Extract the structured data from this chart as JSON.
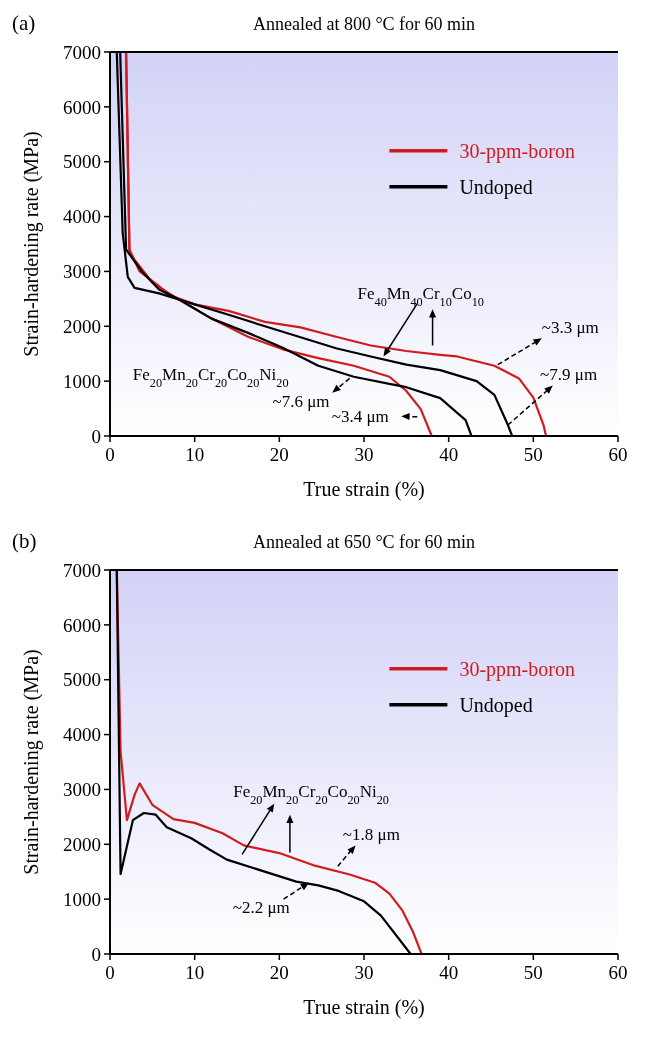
{
  "chart_data": [
    {
      "type": "line",
      "title": "Annealed at 800 °C for 60 min",
      "xlabel": "True strain (%)",
      "ylabel": "Strain-hardening rate (MPa)",
      "xlim": [
        0,
        60
      ],
      "xticks": [
        0,
        10,
        20,
        30,
        40,
        50,
        60
      ],
      "ylim": [
        0,
        7000
      ],
      "yticks": [
        0,
        1000,
        2000,
        3000,
        4000,
        5000,
        6000,
        7000
      ],
      "legend": "right",
      "grid": false,
      "series": [
        {
          "name": "30-ppm-boron",
          "color": "#d01c1f",
          "x": [
            1.9,
            2.3,
            3.5,
            5.8,
            7,
            10,
            14,
            18.3,
            22.5,
            26.7,
            30.8,
            35,
            39,
            41,
            45.4,
            48.3,
            50,
            51.2,
            51.5
          ],
          "values": [
            7000,
            3400,
            3000,
            2730,
            2570,
            2400,
            2280,
            2080,
            1980,
            1810,
            1650,
            1550,
            1480,
            1450,
            1280,
            1050,
            700,
            200,
            0
          ]
        },
        {
          "name": "Undoped",
          "color": "#000000",
          "x": [
            0.8,
            1.5,
            2.1,
            2.9,
            5.8,
            10,
            14.2,
            18.3,
            22.5,
            26.7,
            30.8,
            35,
            39,
            43.3,
            45.4,
            47,
            47.5
          ],
          "values": [
            7000,
            3700,
            2900,
            2700,
            2600,
            2400,
            2200,
            2000,
            1800,
            1600,
            1450,
            1300,
            1200,
            1000,
            750,
            200,
            0
          ]
        },
        {
          "color": "#d01c1f",
          "x": [
            1.9,
            2.3,
            5,
            7.9,
            12,
            16.3,
            20.4,
            24.6,
            28.8,
            33,
            35,
            36.7,
            38
          ],
          "values": [
            7000,
            3330,
            2800,
            2510,
            2140,
            1810,
            1580,
            1420,
            1280,
            1080,
            820,
            490,
            0
          ]
        },
        {
          "color": "#000000",
          "x": [
            1.2,
            1.9,
            3.75,
            5.8,
            7.9,
            12,
            16.3,
            20.4,
            24.6,
            28.8,
            33,
            35,
            39,
            42,
            42.7
          ],
          "values": [
            7000,
            3400,
            3000,
            2670,
            2510,
            2140,
            1880,
            1610,
            1280,
            1080,
            950,
            890,
            690,
            290,
            0
          ]
        }
      ],
      "annotations": [
        "(a)",
        {
          "text": "Fe$_{40}$Mn$_{40}$Cr$_{10}$Co$_{10}$",
          "x": 32.3,
          "y": 1450
        },
        "Fe$_{20}$Mn$_{20}$Cr$_{20}$Co$_{20}$Ni$_{20}$",
        {
          "text": "~3.3 μm",
          "x": 45.8,
          "y": 1300
        },
        {
          "text": "~7.9 μm",
          "x": 47,
          "y": 200
        },
        {
          "text": "~7.6 μm",
          "x": 28.3,
          "y": 1050
        },
        {
          "text": "~3.4 μm",
          "x": 36.3,
          "y": 350
        }
      ]
    },
    {
      "type": "line",
      "title": "Annealed at 650 °C for 60 min",
      "xlabel": "True strain (%)",
      "ylabel": "Strain-hardening rate (MPa)",
      "xlim": [
        0,
        60
      ],
      "xticks": [
        0,
        10,
        20,
        30,
        40,
        50,
        60
      ],
      "ylim": [
        0,
        7000
      ],
      "yticks": [
        0,
        1000,
        2000,
        3000,
        4000,
        5000,
        6000,
        7000
      ],
      "legend": "right",
      "grid": false,
      "series": [
        {
          "name": "30-ppm-boron",
          "color": "#d01c1f",
          "x": [
            0.8,
            1.25,
            2,
            2.9,
            3.5,
            5,
            7.5,
            10,
            13.3,
            15.8,
            20,
            24.2,
            28.3,
            31.3,
            33,
            34.5,
            35.8,
            36.8
          ],
          "values": [
            7000,
            3690,
            2440,
            2900,
            3110,
            2720,
            2460,
            2390,
            2200,
            1980,
            1840,
            1610,
            1450,
            1300,
            1100,
            800,
            400,
            0
          ]
        },
        {
          "name": "Undoped",
          "color": "#000000",
          "x": [
            0.8,
            1.25,
            2.7,
            4,
            5.4,
            6.7,
            9.6,
            11.7,
            13.8,
            17.9,
            22,
            24.6,
            27,
            30,
            32,
            34,
            35.5
          ],
          "values": [
            7000,
            1460,
            2440,
            2570,
            2540,
            2310,
            2110,
            1910,
            1720,
            1520,
            1320,
            1250,
            1150,
            960,
            700,
            300,
            0
          ]
        }
      ],
      "annotations": [
        "(b)",
        "Fe$_{20}$Mn$_{20}$Cr$_{20}$Co$_{20}$Ni$_{20}$",
        {
          "text": "~1.8 μm",
          "x": 26.9,
          "y": 1600
        },
        {
          "text": "~2.2 μm",
          "x": 23.5,
          "y": 1300
        }
      ]
    }
  ]
}
